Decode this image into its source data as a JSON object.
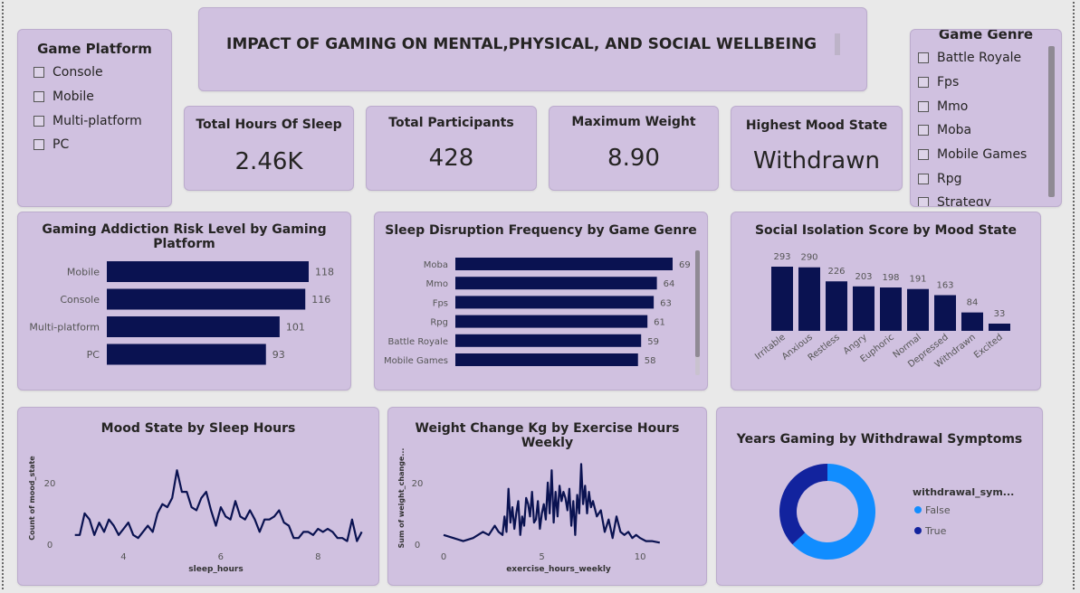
{
  "header": {
    "title": "IMPACT OF GAMING ON MENTAL,PHYSICAL, AND SOCIAL WELLBEING"
  },
  "platform_slicer": {
    "title": "Game Platform",
    "items": [
      "Console",
      "Mobile",
      "Multi-platform",
      "PC"
    ]
  },
  "genre_slicer": {
    "title": "Game Genre",
    "items": [
      "Battle Royale",
      "Fps",
      "Mmo",
      "Moba",
      "Mobile Games",
      "Rpg",
      "Strategy"
    ]
  },
  "kpis": {
    "sleep": {
      "label": "Total Hours Of Sleep",
      "value": "2.46K"
    },
    "participants": {
      "label": "Total Participants",
      "value": "428"
    },
    "weight": {
      "label": "Maximum Weight",
      "value": "8.90"
    },
    "mood": {
      "label": "Highest Mood State",
      "value": "Withdrawn"
    }
  },
  "colors": {
    "bar": "#0a1251",
    "card": "#d0c1e0",
    "donut_false": "#118dff",
    "donut_true": "#12239e"
  },
  "chart_data": [
    {
      "id": "addiction",
      "type": "bar",
      "orientation": "horizontal",
      "title": "Gaming Addiction Risk Level by Gaming Platform",
      "categories": [
        "Mobile",
        "Console",
        "Multi-platform",
        "PC"
      ],
      "values": [
        118,
        116,
        101,
        93
      ]
    },
    {
      "id": "sleep_disruption",
      "type": "bar",
      "orientation": "horizontal",
      "title": "Sleep Disruption Frequency by Game Genre",
      "categories": [
        "Moba",
        "Mmo",
        "Fps",
        "Rpg",
        "Battle Royale",
        "Mobile Games"
      ],
      "values": [
        69,
        64,
        63,
        61,
        59,
        58
      ]
    },
    {
      "id": "isolation",
      "type": "bar",
      "orientation": "vertical",
      "title": "Social Isolation Score by Mood State",
      "categories": [
        "Irritable",
        "Anxious",
        "Restless",
        "Angry",
        "Euphoric",
        "Normal",
        "Depressed",
        "Withdrawn",
        "Excited"
      ],
      "values": [
        293,
        290,
        226,
        203,
        198,
        191,
        163,
        84,
        33
      ]
    },
    {
      "id": "mood_sleep",
      "type": "line",
      "title": "Mood State by Sleep Hours",
      "xlabel": "sleep_hours",
      "ylabel": "Count of mood_state",
      "xlim": [
        2.8,
        9.0
      ],
      "ylim": [
        0,
        27
      ],
      "xticks": [
        4,
        6,
        8
      ],
      "yticks": [
        0,
        20
      ],
      "x": [
        3.0,
        3.1,
        3.2,
        3.3,
        3.4,
        3.5,
        3.6,
        3.7,
        3.8,
        3.9,
        4.0,
        4.1,
        4.2,
        4.3,
        4.4,
        4.5,
        4.6,
        4.7,
        4.8,
        4.9,
        5.0,
        5.1,
        5.2,
        5.3,
        5.4,
        5.5,
        5.6,
        5.7,
        5.8,
        5.9,
        6.0,
        6.1,
        6.2,
        6.3,
        6.4,
        6.5,
        6.6,
        6.7,
        6.8,
        6.9,
        7.0,
        7.1,
        7.2,
        7.3,
        7.4,
        7.5,
        7.6,
        7.7,
        7.8,
        7.9,
        8.0,
        8.1,
        8.2,
        8.3,
        8.4,
        8.5,
        8.6,
        8.7,
        8.8,
        8.9
      ],
      "y": [
        3,
        3,
        10,
        8,
        3,
        7,
        4,
        8,
        6,
        3,
        5,
        7,
        3,
        2,
        4,
        6,
        4,
        10,
        13,
        12,
        15,
        24,
        17,
        17,
        12,
        11,
        15,
        17,
        11,
        6,
        12,
        9,
        8,
        14,
        9,
        8,
        11,
        8,
        4,
        8,
        8,
        9,
        11,
        7,
        6,
        2,
        2,
        4,
        4,
        3,
        5,
        4,
        5,
        4,
        2,
        2,
        1,
        8,
        1,
        4
      ]
    },
    {
      "id": "weight_exercise",
      "type": "line",
      "title": "Weight Change Kg by Exercise Hours Weekly",
      "xlabel": "exercise_hours_weekly",
      "ylabel": "Sum of weight_change...",
      "xlim": [
        -0.6,
        12.3
      ],
      "ylim": [
        0,
        27
      ],
      "xticks": [
        0,
        5,
        10
      ],
      "yticks": [
        0,
        20
      ],
      "x": [
        0,
        0.5,
        1,
        1.5,
        2,
        2.3,
        2.6,
        2.8,
        3,
        3.1,
        3.2,
        3.3,
        3.4,
        3.5,
        3.6,
        3.7,
        3.8,
        3.9,
        4.0,
        4.1,
        4.2,
        4.3,
        4.4,
        4.5,
        4.6,
        4.7,
        4.8,
        4.9,
        5.0,
        5.1,
        5.2,
        5.3,
        5.4,
        5.5,
        5.6,
        5.7,
        5.8,
        5.9,
        6.0,
        6.1,
        6.2,
        6.3,
        6.4,
        6.5,
        6.6,
        6.7,
        6.8,
        6.9,
        7.0,
        7.1,
        7.2,
        7.3,
        7.4,
        7.5,
        7.6,
        7.8,
        8,
        8.2,
        8.4,
        8.6,
        8.8,
        9,
        9.2,
        9.4,
        9.6,
        9.8,
        10,
        10.3,
        10.6,
        11
      ],
      "y": [
        3,
        2,
        1,
        2,
        4,
        3,
        6,
        4,
        3,
        9,
        4,
        18,
        7,
        12,
        5,
        10,
        14,
        3,
        9,
        6,
        15,
        13,
        9,
        17,
        7,
        8,
        14,
        5,
        10,
        13,
        8,
        20,
        10,
        24,
        7,
        17,
        9,
        19,
        14,
        17,
        15,
        11,
        18,
        6,
        14,
        3,
        16,
        10,
        26,
        13,
        19,
        10,
        17,
        12,
        14,
        9,
        11,
        4,
        8,
        2,
        9,
        4,
        3,
        4,
        2,
        3,
        2,
        1,
        1,
        0.5
      ]
    },
    {
      "id": "withdrawal",
      "type": "pie",
      "variant": "donut",
      "title": "Years Gaming by Withdrawal Symptoms",
      "legend_title": "withdrawal_sym...",
      "categories": [
        "False",
        "True"
      ],
      "values": [
        63,
        37
      ]
    }
  ]
}
